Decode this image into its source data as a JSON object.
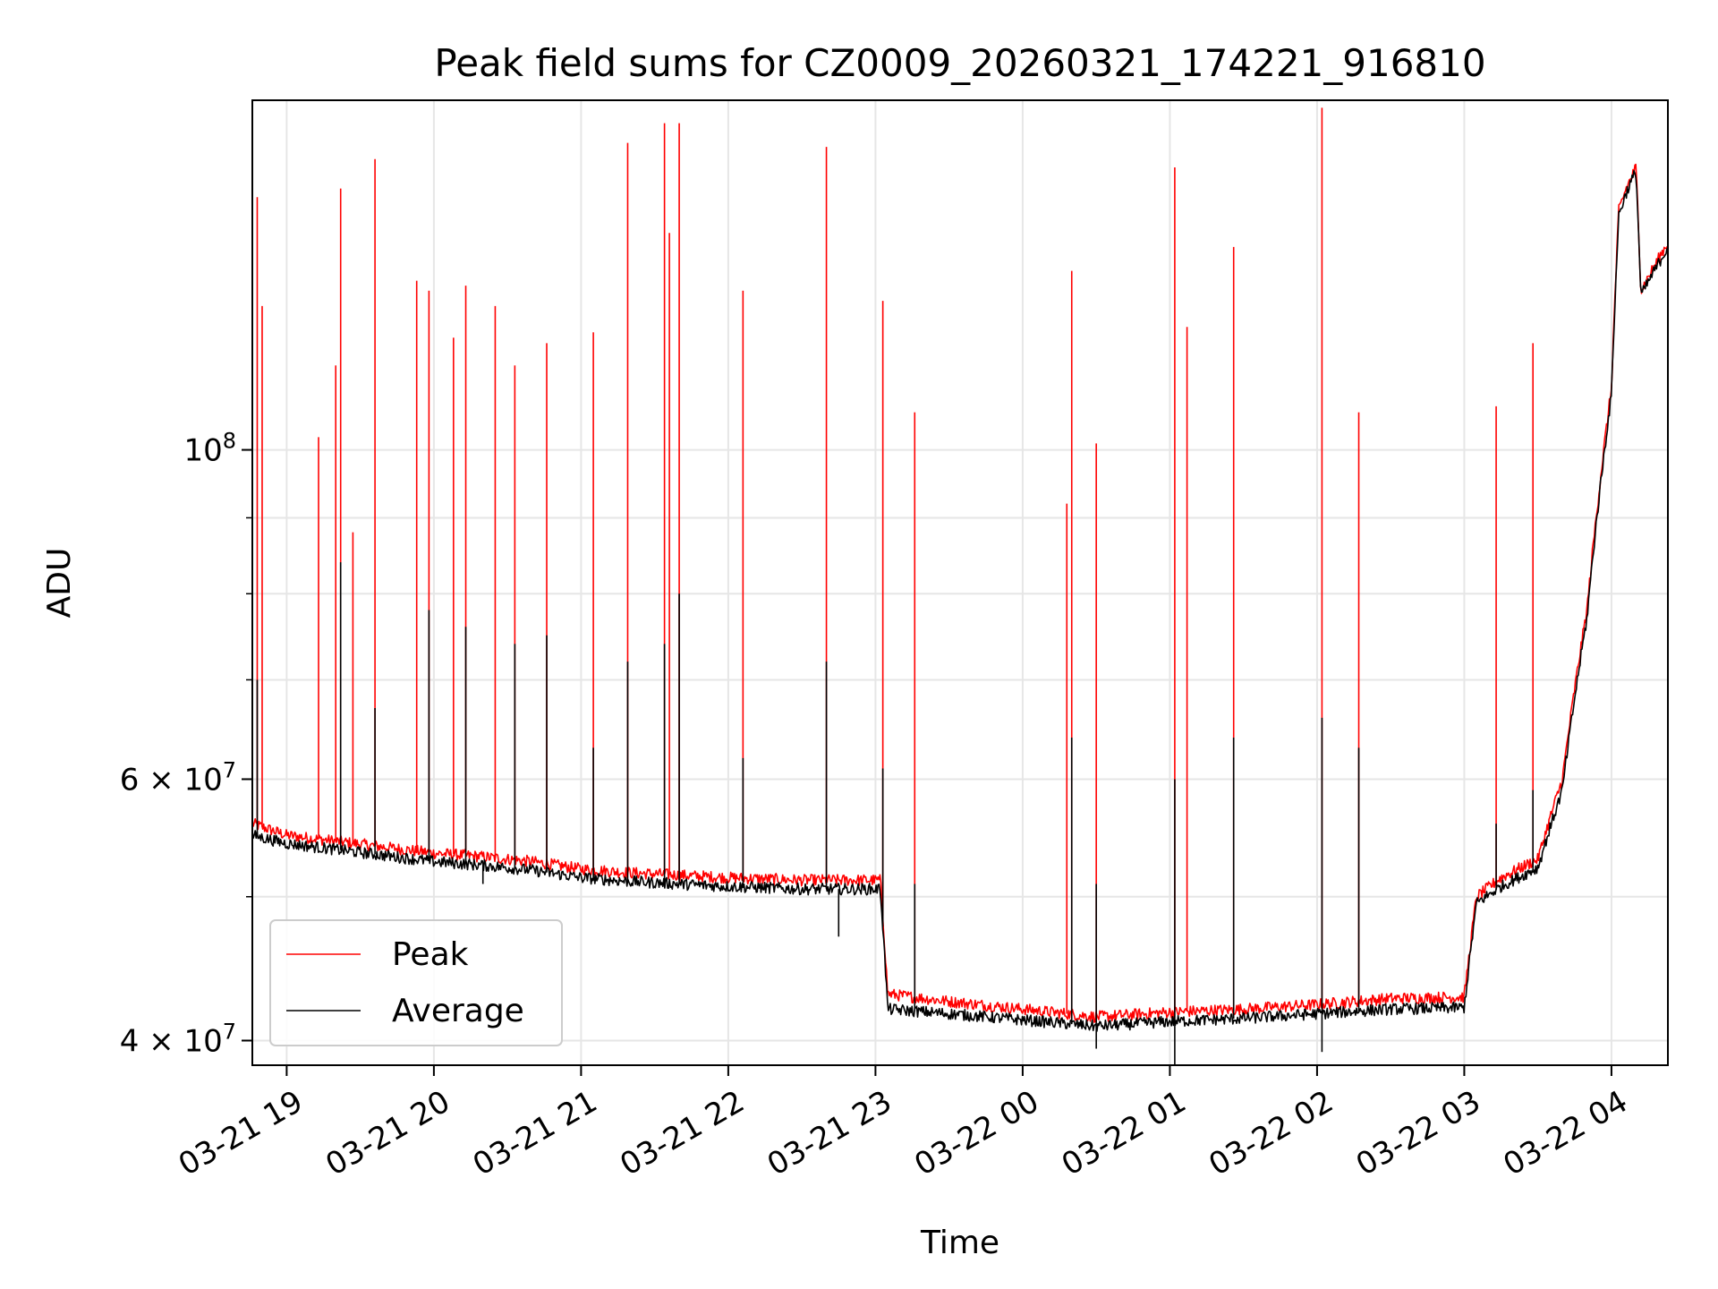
{
  "chart_data": {
    "type": "line",
    "title": "Peak field sums for CZ0009_20260321_174221_916810",
    "xlabel": "Time",
    "ylabel": "ADU",
    "y_scale": "log",
    "ylim": [
      38500000,
      172000000
    ],
    "xlim": [
      "2026-03-21T18:46",
      "2026-03-22T04:23"
    ],
    "grid": true,
    "legend_position": "lower-left",
    "x_ticks": [
      {
        "label": "03-21 19",
        "t": "2026-03-21T19:00"
      },
      {
        "label": "03-21 20",
        "t": "2026-03-21T20:00"
      },
      {
        "label": "03-21 21",
        "t": "2026-03-21T21:00"
      },
      {
        "label": "03-21 22",
        "t": "2026-03-21T22:00"
      },
      {
        "label": "03-21 23",
        "t": "2026-03-21T23:00"
      },
      {
        "label": "03-22 00",
        "t": "2026-03-22T00:00"
      },
      {
        "label": "03-22 01",
        "t": "2026-03-22T01:00"
      },
      {
        "label": "03-22 02",
        "t": "2026-03-22T02:00"
      },
      {
        "label": "03-22 03",
        "t": "2026-03-22T03:00"
      },
      {
        "label": "03-22 04",
        "t": "2026-03-22T04:00"
      }
    ],
    "y_ticks": [
      {
        "mantissa": "4",
        "times": "×",
        "base": "10",
        "exp": "7",
        "value": 40000000
      },
      {
        "mantissa": "6",
        "times": "×",
        "base": "10",
        "exp": "7",
        "value": 60000000
      },
      {
        "mantissa": "",
        "times": "",
        "base": "10",
        "exp": "8",
        "value": 100000000
      }
    ],
    "y_minor_ticks": [
      50000000,
      70000000,
      80000000,
      90000000
    ],
    "series": [
      {
        "name": "Peak",
        "color": "#ff0000",
        "points": [
          [
            "2026-03-21T18:46",
            56000000
          ],
          [
            "2026-03-21T19:00",
            55000000
          ],
          [
            "2026-03-21T19:20",
            54500000
          ],
          [
            "2026-03-21T19:40",
            54000000
          ],
          [
            "2026-03-21T20:00",
            53500000
          ],
          [
            "2026-03-21T20:20",
            53200000
          ],
          [
            "2026-03-21T20:40",
            52800000
          ],
          [
            "2026-03-21T21:00",
            52200000
          ],
          [
            "2026-03-21T21:20",
            51900000
          ],
          [
            "2026-03-21T21:40",
            51700000
          ],
          [
            "2026-03-21T22:00",
            51500000
          ],
          [
            "2026-03-21T22:30",
            51300000
          ],
          [
            "2026-03-21T23:02",
            51300000
          ],
          [
            "2026-03-21T23:05",
            43000000
          ],
          [
            "2026-03-21T23:30",
            42500000
          ],
          [
            "2026-03-22T00:00",
            42000000
          ],
          [
            "2026-03-22T00:30",
            41500000
          ],
          [
            "2026-03-22T01:00",
            41800000
          ],
          [
            "2026-03-22T01:30",
            42000000
          ],
          [
            "2026-03-22T02:00",
            42300000
          ],
          [
            "2026-03-22T02:30",
            42700000
          ],
          [
            "2026-03-22T03:00",
            42800000
          ],
          [
            "2026-03-22T03:05",
            50000000
          ],
          [
            "2026-03-22T03:15",
            51500000
          ],
          [
            "2026-03-22T03:30",
            53000000
          ],
          [
            "2026-03-22T03:40",
            60000000
          ],
          [
            "2026-03-22T03:50",
            78000000
          ],
          [
            "2026-03-22T04:00",
            110000000
          ],
          [
            "2026-03-22T04:03",
            145000000
          ],
          [
            "2026-03-22T04:06",
            150000000
          ],
          [
            "2026-03-22T04:10",
            155000000
          ],
          [
            "2026-03-22T04:12",
            128000000
          ],
          [
            "2026-03-22T04:23",
            138000000
          ]
        ],
        "spikes": [
          [
            "2026-03-21T18:48",
            148000000
          ],
          [
            "2026-03-21T18:50",
            125000000
          ],
          [
            "2026-03-21T19:13",
            102000000
          ],
          [
            "2026-03-21T19:20",
            114000000
          ],
          [
            "2026-03-21T19:22",
            150000000
          ],
          [
            "2026-03-21T19:27",
            88000000
          ],
          [
            "2026-03-21T19:36",
            157000000
          ],
          [
            "2026-03-21T19:53",
            130000000
          ],
          [
            "2026-03-21T19:58",
            128000000
          ],
          [
            "2026-03-21T20:08",
            119000000
          ],
          [
            "2026-03-21T20:13",
            129000000
          ],
          [
            "2026-03-21T20:25",
            125000000
          ],
          [
            "2026-03-21T20:33",
            114000000
          ],
          [
            "2026-03-21T20:46",
            118000000
          ],
          [
            "2026-03-21T21:05",
            120000000
          ],
          [
            "2026-03-21T21:19",
            161000000
          ],
          [
            "2026-03-21T21:34",
            166000000
          ],
          [
            "2026-03-21T21:36",
            140000000
          ],
          [
            "2026-03-21T21:40",
            166000000
          ],
          [
            "2026-03-21T22:06",
            128000000
          ],
          [
            "2026-03-21T22:40",
            160000000
          ],
          [
            "2026-03-21T23:03",
            126000000
          ],
          [
            "2026-03-21T23:16",
            106000000
          ],
          [
            "2026-03-22T00:18",
            92000000
          ],
          [
            "2026-03-22T00:20",
            132000000
          ],
          [
            "2026-03-22T00:30",
            101000000
          ],
          [
            "2026-03-22T01:02",
            155000000
          ],
          [
            "2026-03-22T01:07",
            121000000
          ],
          [
            "2026-03-22T01:26",
            137000000
          ],
          [
            "2026-03-22T02:02",
            170000000
          ],
          [
            "2026-03-22T02:17",
            106000000
          ],
          [
            "2026-03-22T03:13",
            107000000
          ],
          [
            "2026-03-22T03:28",
            118000000
          ]
        ]
      },
      {
        "name": "Average",
        "color": "#000000",
        "points": [
          [
            "2026-03-21T18:46",
            55000000
          ],
          [
            "2026-03-21T19:00",
            54300000
          ],
          [
            "2026-03-21T19:20",
            53800000
          ],
          [
            "2026-03-21T19:40",
            53300000
          ],
          [
            "2026-03-21T20:00",
            52800000
          ],
          [
            "2026-03-21T20:20",
            52500000
          ],
          [
            "2026-03-21T20:40",
            52100000
          ],
          [
            "2026-03-21T21:00",
            51500000
          ],
          [
            "2026-03-21T21:20",
            51200000
          ],
          [
            "2026-03-21T21:40",
            51000000
          ],
          [
            "2026-03-21T22:00",
            50800000
          ],
          [
            "2026-03-21T22:30",
            50600000
          ],
          [
            "2026-03-21T23:02",
            50600000
          ],
          [
            "2026-03-21T23:05",
            42000000
          ],
          [
            "2026-03-21T23:30",
            41700000
          ],
          [
            "2026-03-22T00:00",
            41300000
          ],
          [
            "2026-03-22T00:30",
            40900000
          ],
          [
            "2026-03-22T01:00",
            41200000
          ],
          [
            "2026-03-22T01:30",
            41400000
          ],
          [
            "2026-03-22T02:00",
            41700000
          ],
          [
            "2026-03-22T02:30",
            42000000
          ],
          [
            "2026-03-22T03:00",
            42100000
          ],
          [
            "2026-03-22T03:05",
            49500000
          ],
          [
            "2026-03-22T03:15",
            50800000
          ],
          [
            "2026-03-22T03:30",
            52300000
          ],
          [
            "2026-03-22T03:40",
            59000000
          ],
          [
            "2026-03-22T03:50",
            77000000
          ],
          [
            "2026-03-22T04:00",
            109000000
          ],
          [
            "2026-03-22T04:03",
            144000000
          ],
          [
            "2026-03-22T04:06",
            149000000
          ],
          [
            "2026-03-22T04:10",
            154000000
          ],
          [
            "2026-03-22T04:12",
            127000000
          ],
          [
            "2026-03-22T04:23",
            137000000
          ]
        ],
        "spikes": [
          [
            "2026-03-21T18:48",
            70000000
          ],
          [
            "2026-03-21T19:22",
            84000000
          ],
          [
            "2026-03-21T19:36",
            67000000
          ],
          [
            "2026-03-21T19:58",
            78000000
          ],
          [
            "2026-03-21T20:13",
            76000000
          ],
          [
            "2026-03-21T20:33",
            74000000
          ],
          [
            "2026-03-21T20:46",
            75000000
          ],
          [
            "2026-03-21T21:05",
            63000000
          ],
          [
            "2026-03-21T21:19",
            72000000
          ],
          [
            "2026-03-21T21:34",
            74000000
          ],
          [
            "2026-03-21T21:40",
            80000000
          ],
          [
            "2026-03-21T22:06",
            62000000
          ],
          [
            "2026-03-21T22:40",
            72000000
          ],
          [
            "2026-03-21T23:03",
            61000000
          ],
          [
            "2026-03-21T23:16",
            51000000
          ],
          [
            "2026-03-22T00:20",
            64000000
          ],
          [
            "2026-03-22T00:30",
            51000000
          ],
          [
            "2026-03-22T01:02",
            60000000
          ],
          [
            "2026-03-22T01:26",
            64000000
          ],
          [
            "2026-03-22T02:02",
            66000000
          ],
          [
            "2026-03-22T02:17",
            63000000
          ],
          [
            "2026-03-22T03:13",
            56000000
          ],
          [
            "2026-03-22T03:28",
            59000000
          ]
        ],
        "dips": [
          [
            "2026-03-21T20:20",
            51000000
          ],
          [
            "2026-03-21T22:45",
            47000000
          ],
          [
            "2026-03-22T00:30",
            39500000
          ],
          [
            "2026-03-22T01:02",
            38000000
          ],
          [
            "2026-03-22T02:02",
            39300000
          ]
        ]
      }
    ]
  }
}
